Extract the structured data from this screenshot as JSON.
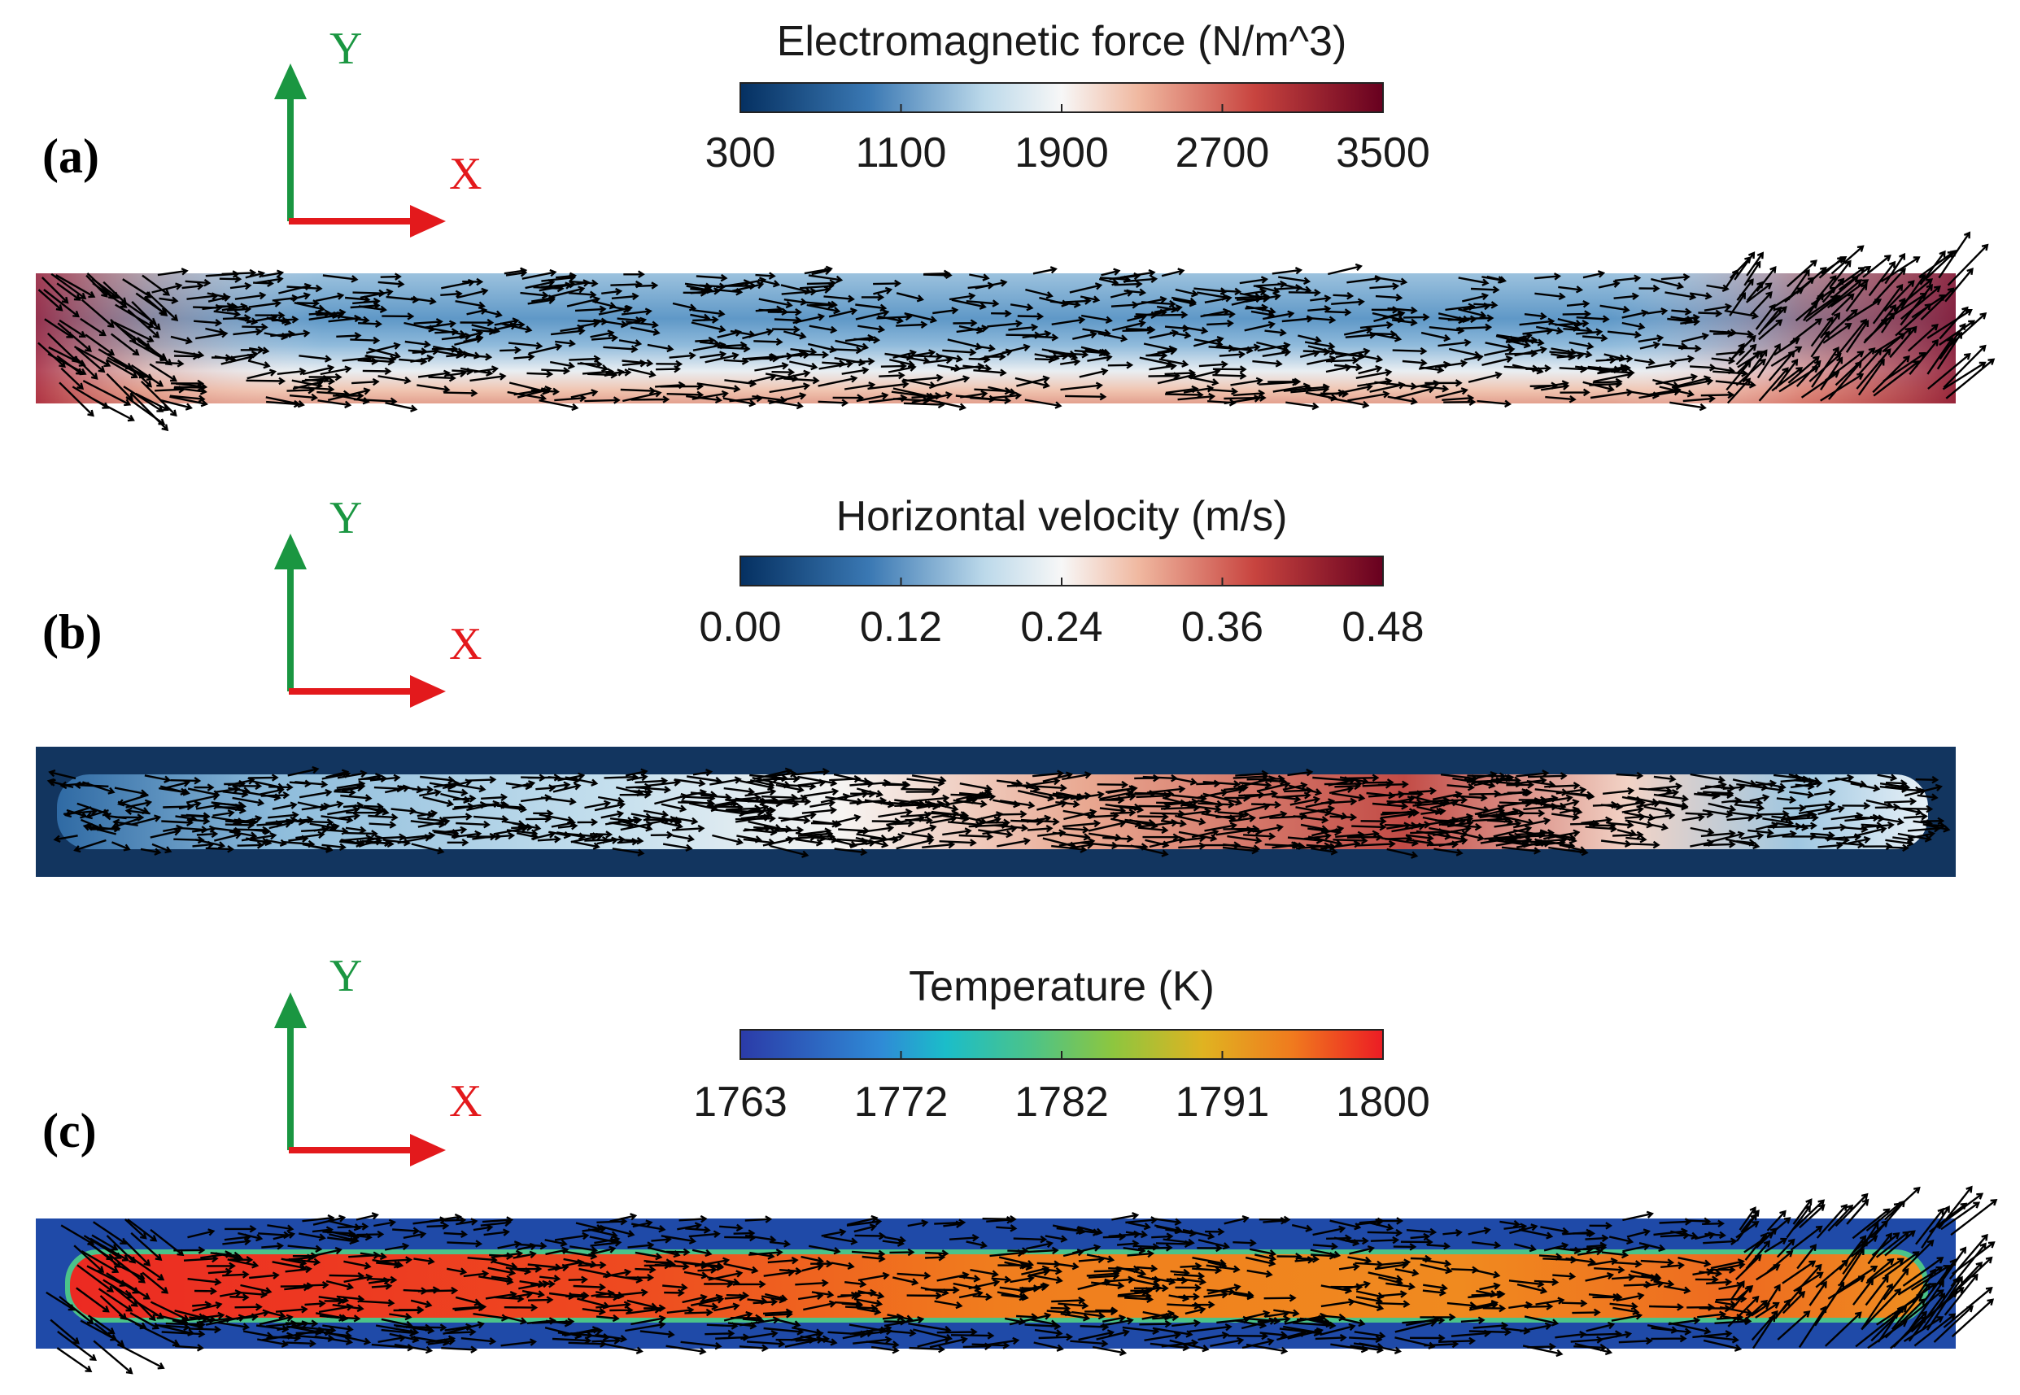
{
  "axis_labels": {
    "y": "Y",
    "x": "X"
  },
  "colors": {
    "y_axis": "#1a9641",
    "x_axis": "#e3191c",
    "arrows": "#000000",
    "cold_shell": "#1f4aa8",
    "velocity_background": "#12355f"
  },
  "panels": [
    {
      "id": "a",
      "label": "(a)",
      "colorbar": {
        "title": "Electromagnetic force (N/m^3)",
        "colormap": "blue-white-red",
        "ticks": [
          "300",
          "1100",
          "1900",
          "2700",
          "3500"
        ]
      }
    },
    {
      "id": "b",
      "label": "(b)",
      "colorbar": {
        "title": "Horizontal velocity (m/s)",
        "colormap": "blue-white-red",
        "ticks": [
          "0.00",
          "0.12",
          "0.24",
          "0.36",
          "0.48"
        ]
      }
    },
    {
      "id": "c",
      "label": "(c)",
      "colorbar": {
        "title": "Temperature (K)",
        "colormap": "rainbow",
        "ticks": [
          "1763",
          "1772",
          "1782",
          "1791",
          "1800"
        ]
      }
    }
  ]
}
